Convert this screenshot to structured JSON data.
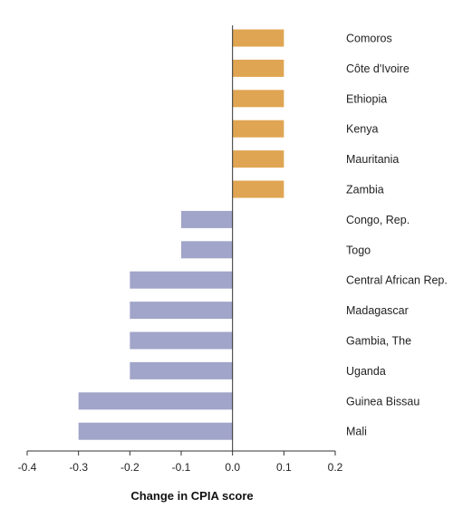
{
  "chart_data": {
    "type": "bar",
    "orientation": "horizontal",
    "title": "",
    "xlabel": "Change in CPIA score",
    "ylabel": "",
    "xlim": [
      -0.4,
      0.2
    ],
    "xticks": [
      -0.4,
      -0.3,
      -0.2,
      -0.1,
      0.0,
      0.1,
      0.2
    ],
    "xtick_labels": [
      "-0.4",
      "-0.3",
      "-0.2",
      "-0.1",
      "0.0",
      "0.1",
      "0.2"
    ],
    "categories": [
      "Comoros",
      "Côte d'Ivoire",
      "Ethiopia",
      "Kenya",
      "Mauritania",
      "Zambia",
      "Congo, Rep.",
      "Togo",
      "Central African Rep.",
      "Madagascar",
      "Gambia, The",
      "Uganda",
      "Guinea Bissau",
      "Mali"
    ],
    "values": [
      0.1,
      0.1,
      0.1,
      0.1,
      0.1,
      0.1,
      -0.1,
      -0.1,
      -0.2,
      -0.2,
      -0.2,
      -0.2,
      -0.3,
      -0.3
    ],
    "grid": false,
    "legend": "none",
    "colors": {
      "positive": "#e0a552",
      "negative": "#a1a5c9",
      "axis": "#333333"
    }
  }
}
